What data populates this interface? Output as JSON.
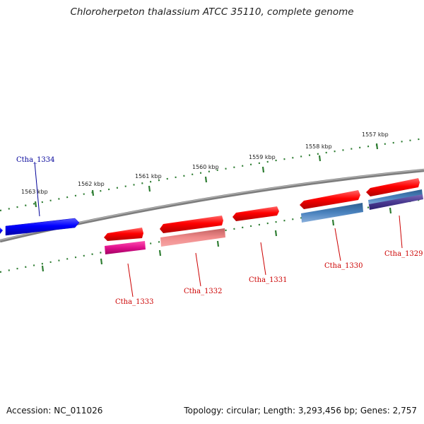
{
  "title": "Chloroherpeton thalassium ATCC 35110, complete genome",
  "footer": {
    "accession": "Accession: NC_011026",
    "summary": "Topology: circular; Length: 3,293,456 bp; Genes: 2,757"
  },
  "colors": {
    "forward_gene": "#e60000",
    "reverse_gene": "#0000e6",
    "backbone": "#8a8a8a",
    "ticks": "#2e7d32",
    "label_red": "#cc0000",
    "label_blue": "#000099"
  },
  "scale_labels": [
    "1563 kbp",
    "1562 kbp",
    "1561 kbp",
    "1560 kbp",
    "1559 kbp",
    "1558 kbp",
    "1557 kbp"
  ],
  "genes": [
    {
      "name": "Ctha_1334",
      "strand": "reverse"
    },
    {
      "name": "Ctha_1333",
      "strand": "forward"
    },
    {
      "name": "Ctha_1332",
      "strand": "forward"
    },
    {
      "name": "Ctha_1331",
      "strand": "forward"
    },
    {
      "name": "Ctha_1330",
      "strand": "forward"
    },
    {
      "name": "Ctha_1329",
      "strand": "forward"
    }
  ]
}
